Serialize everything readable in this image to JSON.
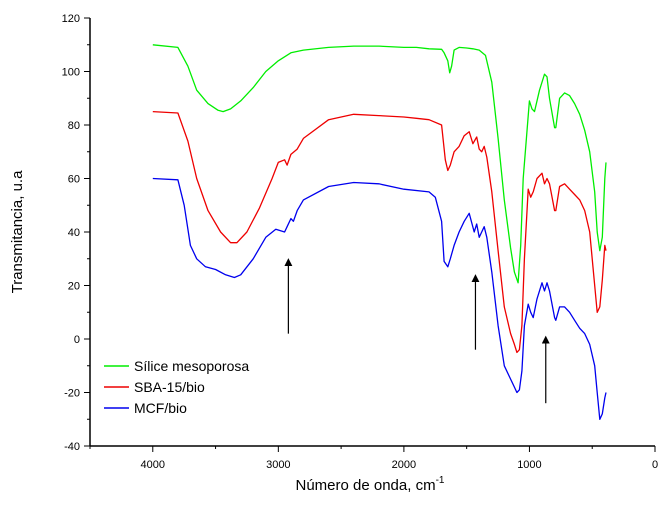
{
  "chart_data": {
    "type": "line",
    "xlabel": "Número de onda, cm",
    "xlabel_superscript": "-1",
    "ylabel": "Transmitancia, u.a",
    "xlim": [
      4500,
      0
    ],
    "ylim": [
      -40,
      120
    ],
    "x_ticks": [
      "4000",
      "3000",
      "2000",
      "1000",
      "0"
    ],
    "y_ticks": [
      "-40",
      "-20",
      "0",
      "20",
      "40",
      "60",
      "80",
      "100",
      "120"
    ],
    "grid": false,
    "legend_position": "bottom-left",
    "series": [
      {
        "name": "Sílice mesoporosa",
        "color": "#00ee00",
        "x": [
          4000,
          3800,
          3720,
          3650,
          3560,
          3480,
          3440,
          3380,
          3300,
          3200,
          3100,
          3000,
          2900,
          2800,
          2600,
          2400,
          2200,
          2000,
          1900,
          1800,
          1700,
          1680,
          1650,
          1635,
          1620,
          1600,
          1560,
          1500,
          1450,
          1400,
          1350,
          1300,
          1250,
          1200,
          1150,
          1120,
          1090,
          1070,
          1050,
          1000,
          980,
          960,
          920,
          880,
          860,
          840,
          800,
          790,
          760,
          720,
          680,
          640,
          600,
          560,
          520,
          480,
          460,
          440,
          420,
          400,
          390
        ],
        "y": [
          110,
          109,
          102,
          93,
          88,
          85.5,
          85,
          86,
          89,
          94,
          100,
          104,
          107,
          108,
          109,
          109.5,
          109.5,
          109,
          109,
          108.5,
          108.3,
          107,
          104,
          99.5,
          102,
          108,
          109,
          108.8,
          108.5,
          108,
          106,
          96,
          75,
          52,
          34,
          25,
          21,
          35,
          60,
          89,
          86,
          85,
          93,
          99,
          98,
          90,
          79,
          79,
          90,
          92,
          91,
          88,
          84,
          78,
          70,
          55,
          40,
          33,
          38,
          60,
          66
        ]
      },
      {
        "name": "SBA-15/bio",
        "color": "#ee0000",
        "x": [
          4000,
          3800,
          3720,
          3650,
          3560,
          3460,
          3380,
          3330,
          3250,
          3150,
          3050,
          3000,
          2950,
          2930,
          2900,
          2850,
          2800,
          2600,
          2400,
          2200,
          2000,
          1900,
          1800,
          1700,
          1670,
          1650,
          1630,
          1600,
          1560,
          1520,
          1480,
          1450,
          1420,
          1400,
          1380,
          1360,
          1340,
          1300,
          1250,
          1200,
          1150,
          1120,
          1100,
          1080,
          1060,
          1040,
          1010,
          990,
          970,
          940,
          900,
          880,
          860,
          840,
          800,
          790,
          760,
          720,
          680,
          640,
          600,
          560,
          520,
          480,
          460,
          440,
          420,
          400,
          390
        ],
        "y": [
          85,
          84.5,
          74,
          60,
          48,
          40,
          36,
          36,
          40,
          49,
          60,
          66,
          67,
          65,
          69,
          71,
          75,
          82,
          84,
          83.5,
          83,
          82.5,
          82,
          80,
          67,
          63,
          65,
          70,
          72,
          76,
          77.5,
          73,
          75.5,
          71,
          70,
          72,
          68,
          55,
          33,
          12,
          2,
          -2,
          -5,
          -4,
          5,
          30,
          56,
          53,
          55,
          60,
          62,
          58,
          60,
          58,
          48,
          48,
          57,
          58,
          56,
          54,
          52,
          48,
          40,
          20,
          10,
          12,
          22,
          35,
          33
        ]
      },
      {
        "name": "MCF/bio",
        "color": "#0000ee",
        "x": [
          4000,
          3800,
          3750,
          3700,
          3650,
          3580,
          3500,
          3420,
          3350,
          3300,
          3200,
          3100,
          3020,
          2950,
          2930,
          2900,
          2880,
          2850,
          2800,
          2600,
          2400,
          2200,
          2000,
          1800,
          1750,
          1700,
          1680,
          1650,
          1630,
          1600,
          1560,
          1520,
          1480,
          1440,
          1420,
          1400,
          1380,
          1360,
          1340,
          1300,
          1250,
          1200,
          1150,
          1120,
          1100,
          1080,
          1060,
          1040,
          1010,
          990,
          970,
          940,
          900,
          880,
          860,
          840,
          800,
          790,
          760,
          720,
          680,
          640,
          600,
          560,
          520,
          480,
          460,
          440,
          420,
          400,
          390
        ],
        "y": [
          60,
          59.5,
          50,
          35,
          30,
          27,
          26,
          24,
          23,
          24,
          30,
          38,
          41,
          40,
          42,
          45,
          44,
          48,
          52,
          57,
          58.5,
          58,
          56,
          55,
          53,
          44,
          29,
          27,
          30,
          35,
          40,
          44,
          47,
          40,
          43,
          38,
          40,
          42,
          38,
          25,
          5,
          -10,
          -15,
          -18,
          -20,
          -19,
          -12,
          5,
          13,
          10,
          8,
          15,
          21,
          18,
          21,
          18,
          8,
          7,
          12,
          12,
          10,
          7,
          4,
          2,
          -2,
          -10,
          -20,
          -30,
          -28,
          -22,
          -20
        ]
      }
    ],
    "annotations": [
      {
        "type": "arrow",
        "x": 2920,
        "y_from": 2,
        "y_to": 31
      },
      {
        "type": "arrow",
        "x": 1430,
        "y_from": -4,
        "y_to": 25
      },
      {
        "type": "arrow",
        "x": 870,
        "y_from": -24,
        "y_to": 2
      }
    ]
  }
}
